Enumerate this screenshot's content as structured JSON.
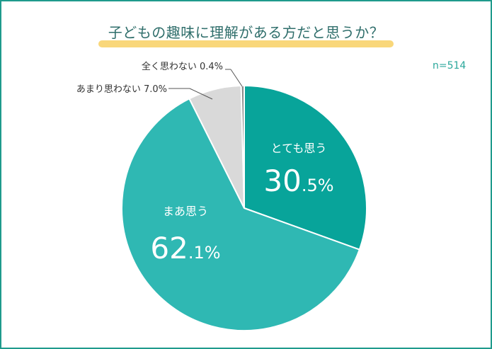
{
  "title": "子どもの趣味に理解がある方だと思うか？",
  "sample_size": "n=514",
  "chart_data": {
    "type": "pie",
    "title": "子どもの趣味に理解がある方だと思うか？",
    "n": "n=514",
    "slices": [
      {
        "label": "とても思う",
        "value": 30.5,
        "value_label_main": "30",
        "value_label_sub": ".5%",
        "color": "#08a49a"
      },
      {
        "label": "まあ思う",
        "value": 62.1,
        "value_label_main": "62",
        "value_label_sub": ".1%",
        "color": "#2fb8b3"
      },
      {
        "label": "あまり思わない",
        "value": 7.0,
        "value_label": "あまり思わない 7.0%",
        "color": "#d9d9d9"
      },
      {
        "label": "全く思わない",
        "value": 0.4,
        "value_label": "全く思わない 0.4%",
        "color": "#8a8a8a"
      }
    ]
  }
}
